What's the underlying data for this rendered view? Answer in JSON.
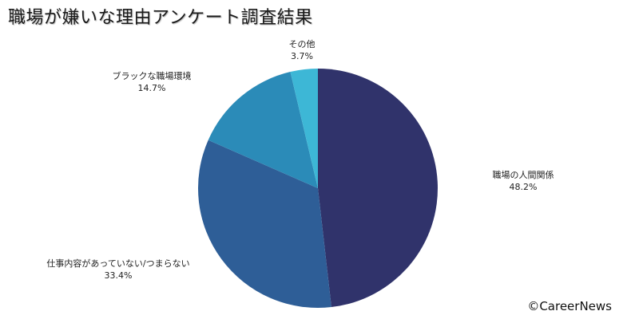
{
  "title": "職場が嫌いな理由アンケート調査結果",
  "credit": "©CareerNews",
  "labels": [
    {
      "name": "職場の人間関係",
      "pct": "48.2%"
    },
    {
      "name": "仕事内容があっていない/つまらない",
      "pct": "33.4%"
    },
    {
      "name": "ブラックな職場環境",
      "pct": "14.7%"
    },
    {
      "name": "その他",
      "pct": "3.7%"
    }
  ],
  "chart_data": {
    "type": "pie",
    "title": "職場が嫌いな理由アンケート調査結果",
    "categories": [
      "職場の人間関係",
      "仕事内容があっていない/つまらない",
      "ブラックな職場環境",
      "その他"
    ],
    "values": [
      48.2,
      33.4,
      14.7,
      3.7
    ],
    "unit": "%",
    "colors": [
      "#30336b",
      "#2e5e97",
      "#2b8bb8",
      "#3db7d6"
    ],
    "start_angle": "12 o'clock, clockwise",
    "legend": "none (direct labels)",
    "annotation": "©CareerNews"
  }
}
